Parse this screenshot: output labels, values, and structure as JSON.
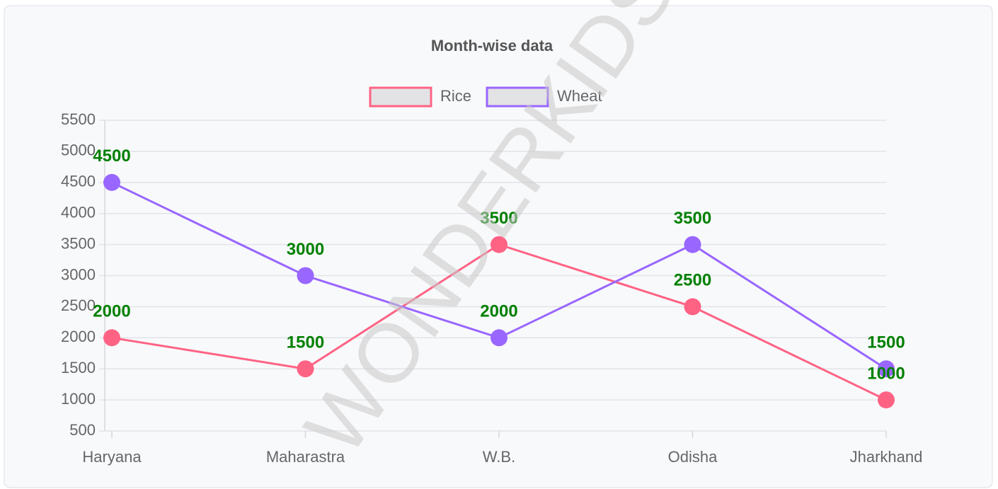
{
  "chart_data": {
    "type": "line",
    "title": "Month-wise data",
    "watermark": "WONDERKIDS",
    "categories": [
      "Haryana",
      "Maharastra",
      "W.B.",
      "Odisha",
      "Jharkhand"
    ],
    "series": [
      {
        "name": "Rice",
        "color": "#ff6384",
        "values": [
          2000,
          1500,
          3500,
          2500,
          1000
        ]
      },
      {
        "name": "Wheat",
        "color": "#9966ff",
        "values": [
          4500,
          3000,
          2000,
          3500,
          1500
        ]
      }
    ],
    "ylim": [
      500,
      5500
    ],
    "yticks": [
      500,
      1000,
      1500,
      2000,
      2500,
      3000,
      3500,
      4000,
      4500,
      5000,
      5500
    ],
    "grid": true,
    "legend": "top"
  }
}
